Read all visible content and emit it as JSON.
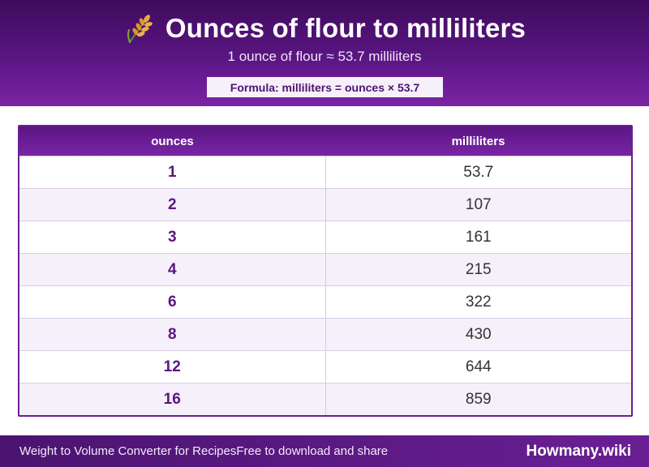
{
  "header": {
    "icon": "wheat-icon",
    "title": "Ounces of flour to milliliters",
    "subtitle": "1 ounce of flour ≈ 53.7 milliliters",
    "formula": "Formula: milliliters = ounces × 53.7"
  },
  "table": {
    "columns": [
      "ounces",
      "milliliters"
    ],
    "rows": [
      {
        "ounces": "1",
        "milliliters": "53.7"
      },
      {
        "ounces": "2",
        "milliliters": "107"
      },
      {
        "ounces": "3",
        "milliliters": "161"
      },
      {
        "ounces": "4",
        "milliliters": "215"
      },
      {
        "ounces": "6",
        "milliliters": "322"
      },
      {
        "ounces": "8",
        "milliliters": "430"
      },
      {
        "ounces": "12",
        "milliliters": "644"
      },
      {
        "ounces": "16",
        "milliliters": "859"
      }
    ]
  },
  "footer": {
    "left_text": "Weight to Volume Converter for RecipesFree to download and share",
    "brand": "Howmany.wiki"
  },
  "colors": {
    "accent": "#5a1682",
    "header_gradient_end": "#7a24a6",
    "row_alt": "#f5f0fa"
  }
}
